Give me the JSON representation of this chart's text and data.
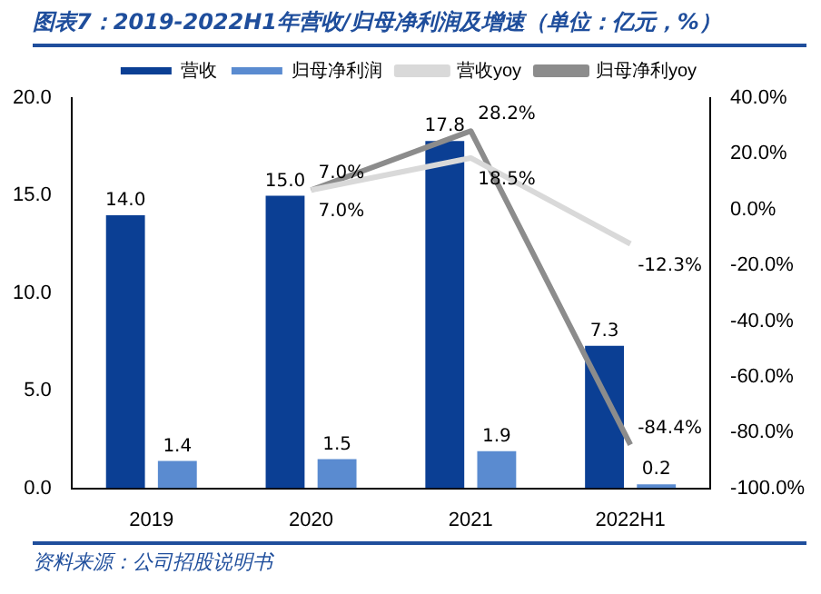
{
  "chart_data": {
    "type": "bar",
    "title": "图表7：2019-2022H1年营收/归母净利润及增速（单位：亿元，%）",
    "categories": [
      "2019",
      "2020",
      "2021",
      "2022H1"
    ],
    "series": [
      {
        "name": "营收",
        "color": "#0b3f94",
        "values": [
          14.0,
          15.0,
          17.8,
          7.3
        ],
        "value_labels": [
          "14.0",
          "15.0",
          "17.8",
          "7.3"
        ]
      },
      {
        "name": "归母净利润",
        "color": "#5a8bd0",
        "values": [
          1.4,
          1.5,
          1.9,
          0.2
        ],
        "value_labels": [
          "1.4",
          "1.5",
          "1.9",
          "0.2"
        ]
      },
      {
        "name": "营收yoy",
        "type": "line",
        "axis": "y2",
        "color": "#d9d9d9",
        "values": [
          null,
          7.0,
          18.5,
          -12.3
        ],
        "value_labels": [
          null,
          "7.0%",
          "18.5%",
          "-12.3%"
        ]
      },
      {
        "name": "归母净利yoy",
        "type": "line",
        "axis": "y2",
        "color": "#8c8c8c",
        "values": [
          null,
          7.0,
          28.2,
          -84.4
        ],
        "value_labels": [
          null,
          "7.0%",
          "28.2%",
          "-84.4%"
        ]
      }
    ],
    "ylim": [
      0,
      20
    ],
    "yticks": [
      {
        "value": 0,
        "label": "0.0"
      },
      {
        "value": 5,
        "label": "5.0"
      },
      {
        "value": 10,
        "label": "10.0"
      },
      {
        "value": 15,
        "label": "15.0"
      },
      {
        "value": 20,
        "label": "20.0"
      }
    ],
    "y2lim": [
      -100,
      40
    ],
    "y2ticks": [
      {
        "value": -100,
        "label": "-100.0%"
      },
      {
        "value": -80,
        "label": "-80.0%"
      },
      {
        "value": -60,
        "label": "-60.0%"
      },
      {
        "value": -40,
        "label": "-40.0%"
      },
      {
        "value": -20,
        "label": "-20.0%"
      },
      {
        "value": 0,
        "label": "0.0%"
      },
      {
        "value": 20,
        "label": "20.0%"
      },
      {
        "value": 40,
        "label": "40.0%"
      }
    ],
    "grid": false,
    "legend": "top",
    "marker": "none",
    "annotations": [
      "资料来源：公司招股说明书"
    ]
  }
}
